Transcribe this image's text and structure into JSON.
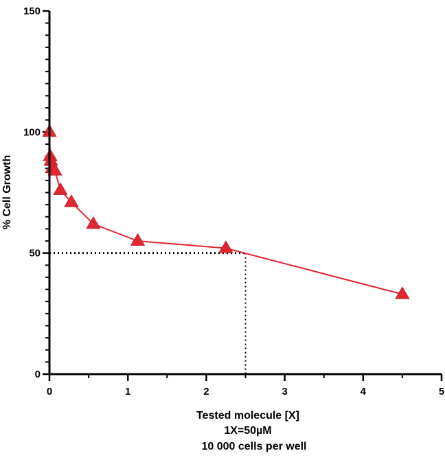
{
  "chart_data": {
    "type": "line",
    "title": "",
    "xlabel_lines": [
      "Tested molecule [X]",
      "1X=50µM",
      "10 000 cells per well"
    ],
    "ylabel": "% Cell Growth",
    "xlim": [
      0,
      5
    ],
    "ylim": [
      0,
      150
    ],
    "x_ticks": [
      0,
      1,
      2,
      3,
      4,
      5
    ],
    "y_ticks": [
      0,
      50,
      100,
      150
    ],
    "x_tick_labels": [
      "0",
      "1",
      "2",
      "3",
      "4",
      "5"
    ],
    "y_tick_labels": [
      "0",
      "50",
      "100",
      "150"
    ],
    "grid": false,
    "series": [
      {
        "name": "% Cell Growth",
        "color": "#e0262e",
        "marker": "triangle",
        "x": [
          0.0,
          0.009,
          0.018,
          0.035,
          0.07,
          0.14,
          0.28,
          0.56,
          1.125,
          2.25,
          4.5
        ],
        "y": [
          100,
          90,
          88,
          85,
          84,
          76,
          71,
          62,
          55,
          52,
          33
        ]
      }
    ],
    "reference_lines": {
      "y_value": 50,
      "x_value": 2.5,
      "style": "dotted",
      "color": "#000000"
    }
  }
}
